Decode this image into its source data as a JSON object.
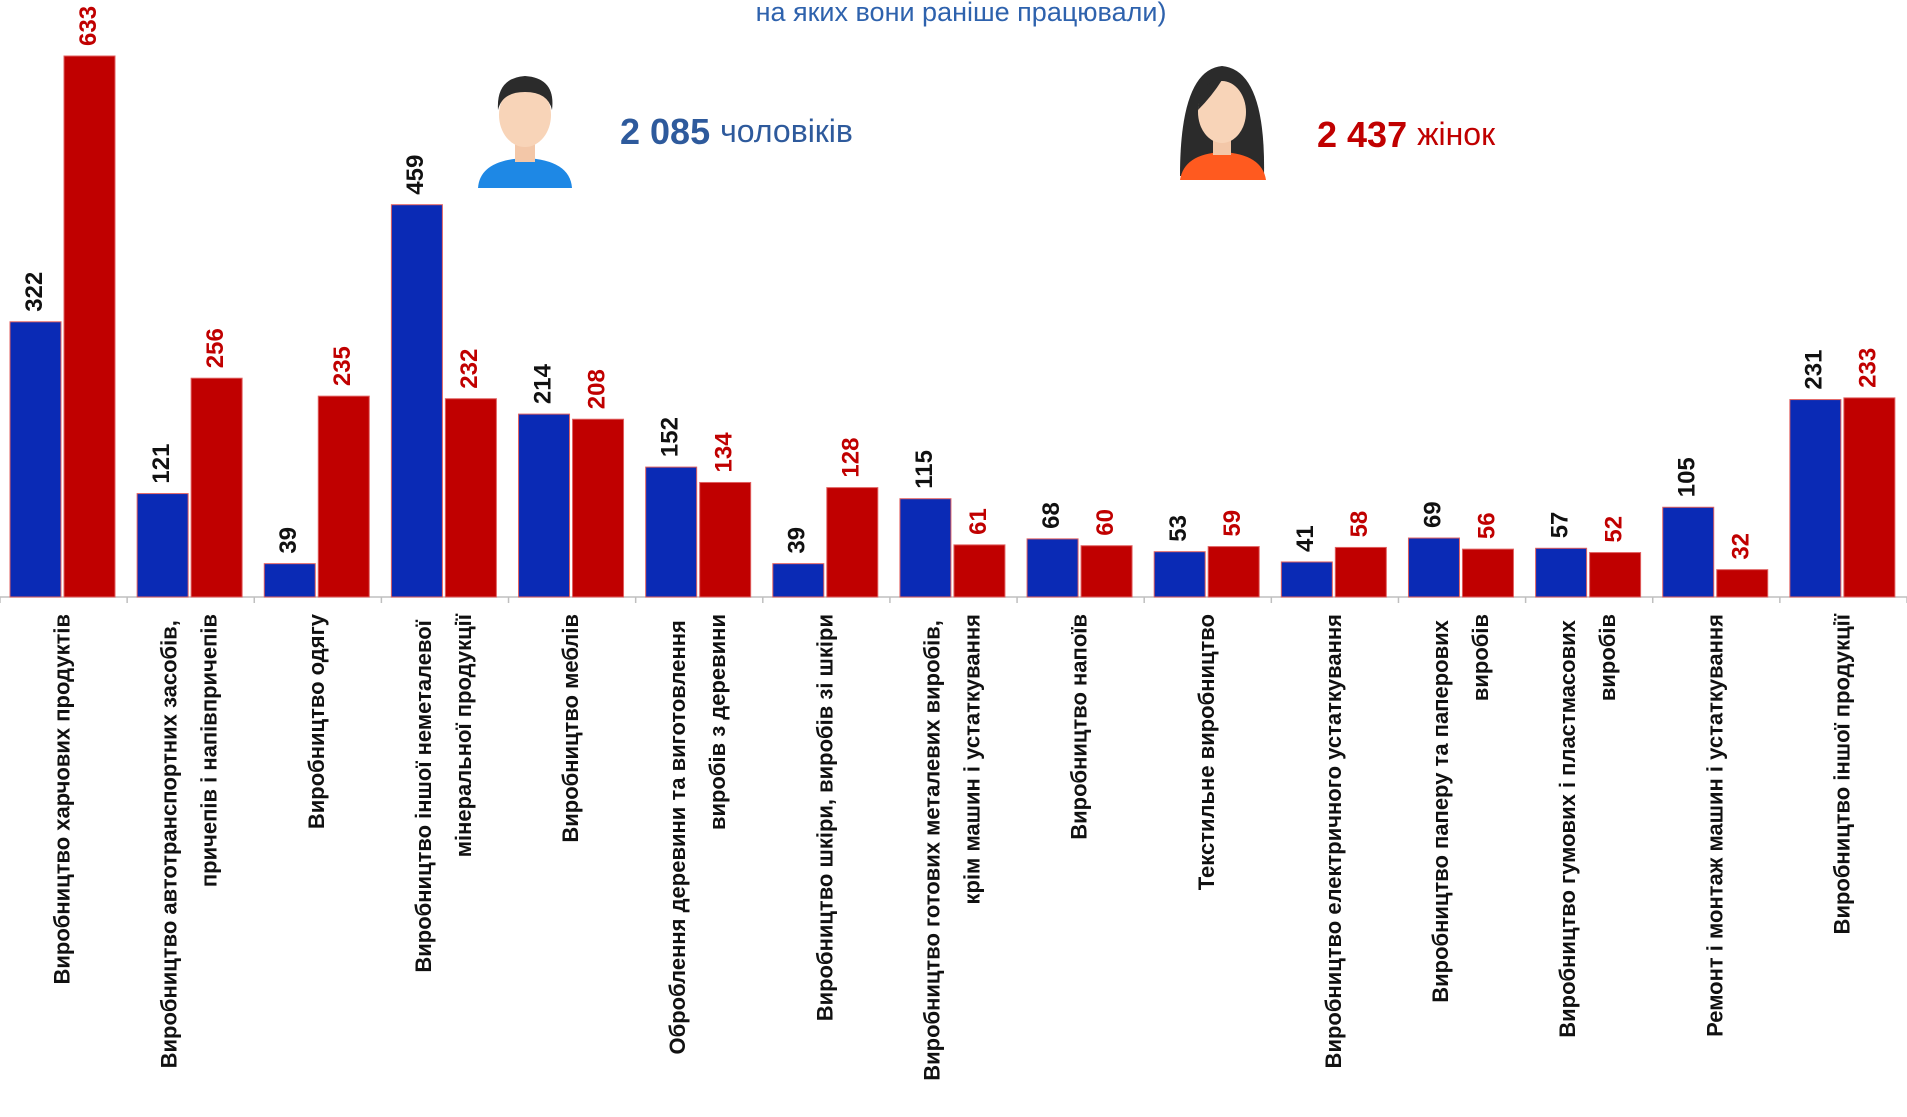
{
  "chart_data": {
    "type": "bar",
    "title": "на яких вони раніше працювали)",
    "categories": [
      "Виробництво харчових продуктів",
      "Виробництво автотранспортних засобів, причепів і напівпричепів",
      "Виробництво одягу",
      "Виробництво іншої неметалевої мінеральної продукції",
      "Виробництво меблів",
      "Оброблення деревини та виготовлення виробів з деревини",
      "Виробництво шкіри, виробів зі шкіри",
      "Виробництво готових металевих виробів, крім машин і устаткування",
      "Виробництво напоїв",
      "Текстильне виробництво",
      "Виробництво електричного устаткування",
      "Виробництво паперу та паперових виробів",
      "Виробництво гумових і пластмасових виробів",
      "Ремонт і монтаж машин і устаткування",
      "Виробництво іншої продукції"
    ],
    "series": [
      {
        "name": "чоловіків",
        "total": "2 085",
        "color": "#0a2ab5",
        "label_color": "#111111",
        "values": [
          322,
          121,
          39,
          459,
          214,
          152,
          39,
          115,
          68,
          53,
          41,
          69,
          57,
          105,
          231
        ]
      },
      {
        "name": "жінок",
        "total": "2 437",
        "color": "#c00000",
        "label_color": "#c00000",
        "values": [
          633,
          256,
          235,
          232,
          208,
          134,
          128,
          61,
          60,
          59,
          58,
          56,
          52,
          32,
          233
        ]
      }
    ]
  }
}
